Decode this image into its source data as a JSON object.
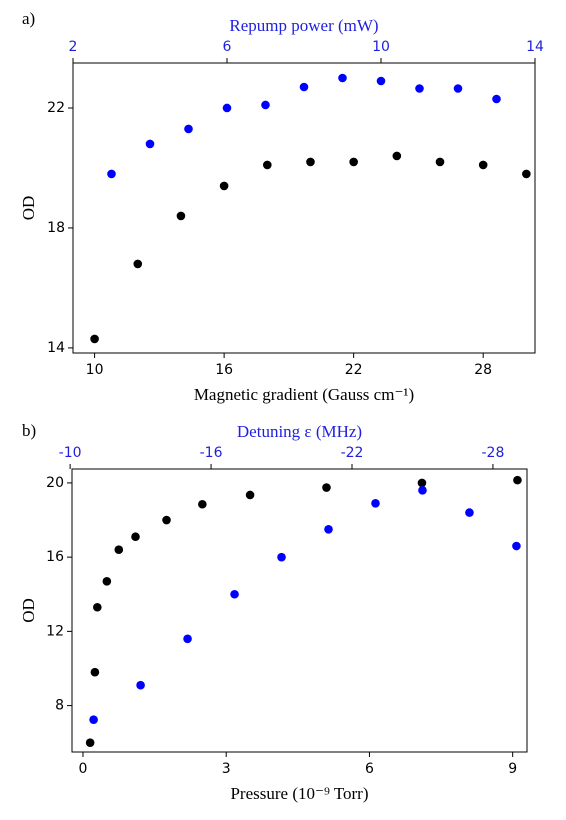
{
  "chart_data": [
    {
      "type": "scatter",
      "panel_label": "a)",
      "xlabel": "Magnetic gradient (Gauss cm⁻¹)",
      "ylabel": "OD",
      "x2label": "Repump power (mW)",
      "xlim": [
        9.0,
        30.4
      ],
      "xticks": [
        10,
        16,
        22,
        28
      ],
      "x2lim": [
        2,
        14
      ],
      "x2ticks": [
        2,
        6,
        10,
        14
      ],
      "ylim": [
        13.83,
        23.5
      ],
      "yticks": [
        14,
        18,
        22
      ],
      "x2color": "#1f1fe0",
      "series": [
        {
          "color": "#000000",
          "x": [
            10,
            12,
            14,
            16,
            18,
            20,
            22,
            24,
            26,
            28,
            30
          ],
          "values": [
            14.3,
            16.8,
            18.4,
            19.4,
            20.1,
            20.2,
            20.2,
            20.4,
            20.2,
            20.1,
            19.8
          ]
        },
        {
          "color": "#0000ff",
          "axis": "x2",
          "x": [
            3,
            4,
            5,
            6,
            7,
            8,
            9,
            10,
            11,
            12,
            13
          ],
          "values": [
            19.8,
            20.8,
            21.3,
            22.0,
            22.1,
            22.7,
            23.0,
            22.9,
            22.65,
            22.65,
            22.3
          ]
        }
      ]
    },
    {
      "type": "scatter",
      "panel_label": "b)",
      "xlabel": "Pressure (10⁻⁹ Torr)",
      "ylabel": "OD",
      "x2label": "Detuning ε (MHz)",
      "xlim": [
        -0.23,
        9.3
      ],
      "xticks": [
        0,
        3,
        6,
        9
      ],
      "x2lim": [
        -10.08,
        -29.45
      ],
      "x2ticks": [
        -10,
        -16,
        -22,
        -28
      ],
      "ylim": [
        5.5,
        20.75
      ],
      "yticks": [
        8,
        12,
        16,
        20
      ],
      "x2color": "#1f1fe0",
      "series": [
        {
          "color": "#000000",
          "x": [
            0.15,
            0.25,
            0.3,
            0.5,
            0.75,
            1.1,
            1.75,
            2.5,
            3.5,
            5.1,
            7.1,
            9.1
          ],
          "values": [
            6.0,
            9.8,
            13.3,
            14.7,
            16.4,
            17.1,
            18.0,
            18.85,
            19.35,
            19.75,
            20.0,
            20.15
          ]
        },
        {
          "color": "#0000ff",
          "axis": "x2",
          "x": [
            -11,
            -13,
            -15,
            -17,
            -19,
            -21,
            -23,
            -25,
            -27,
            -29
          ],
          "values": [
            7.24,
            9.1,
            11.6,
            14.0,
            16.0,
            17.5,
            18.9,
            19.6,
            18.4,
            16.6
          ]
        }
      ]
    }
  ]
}
